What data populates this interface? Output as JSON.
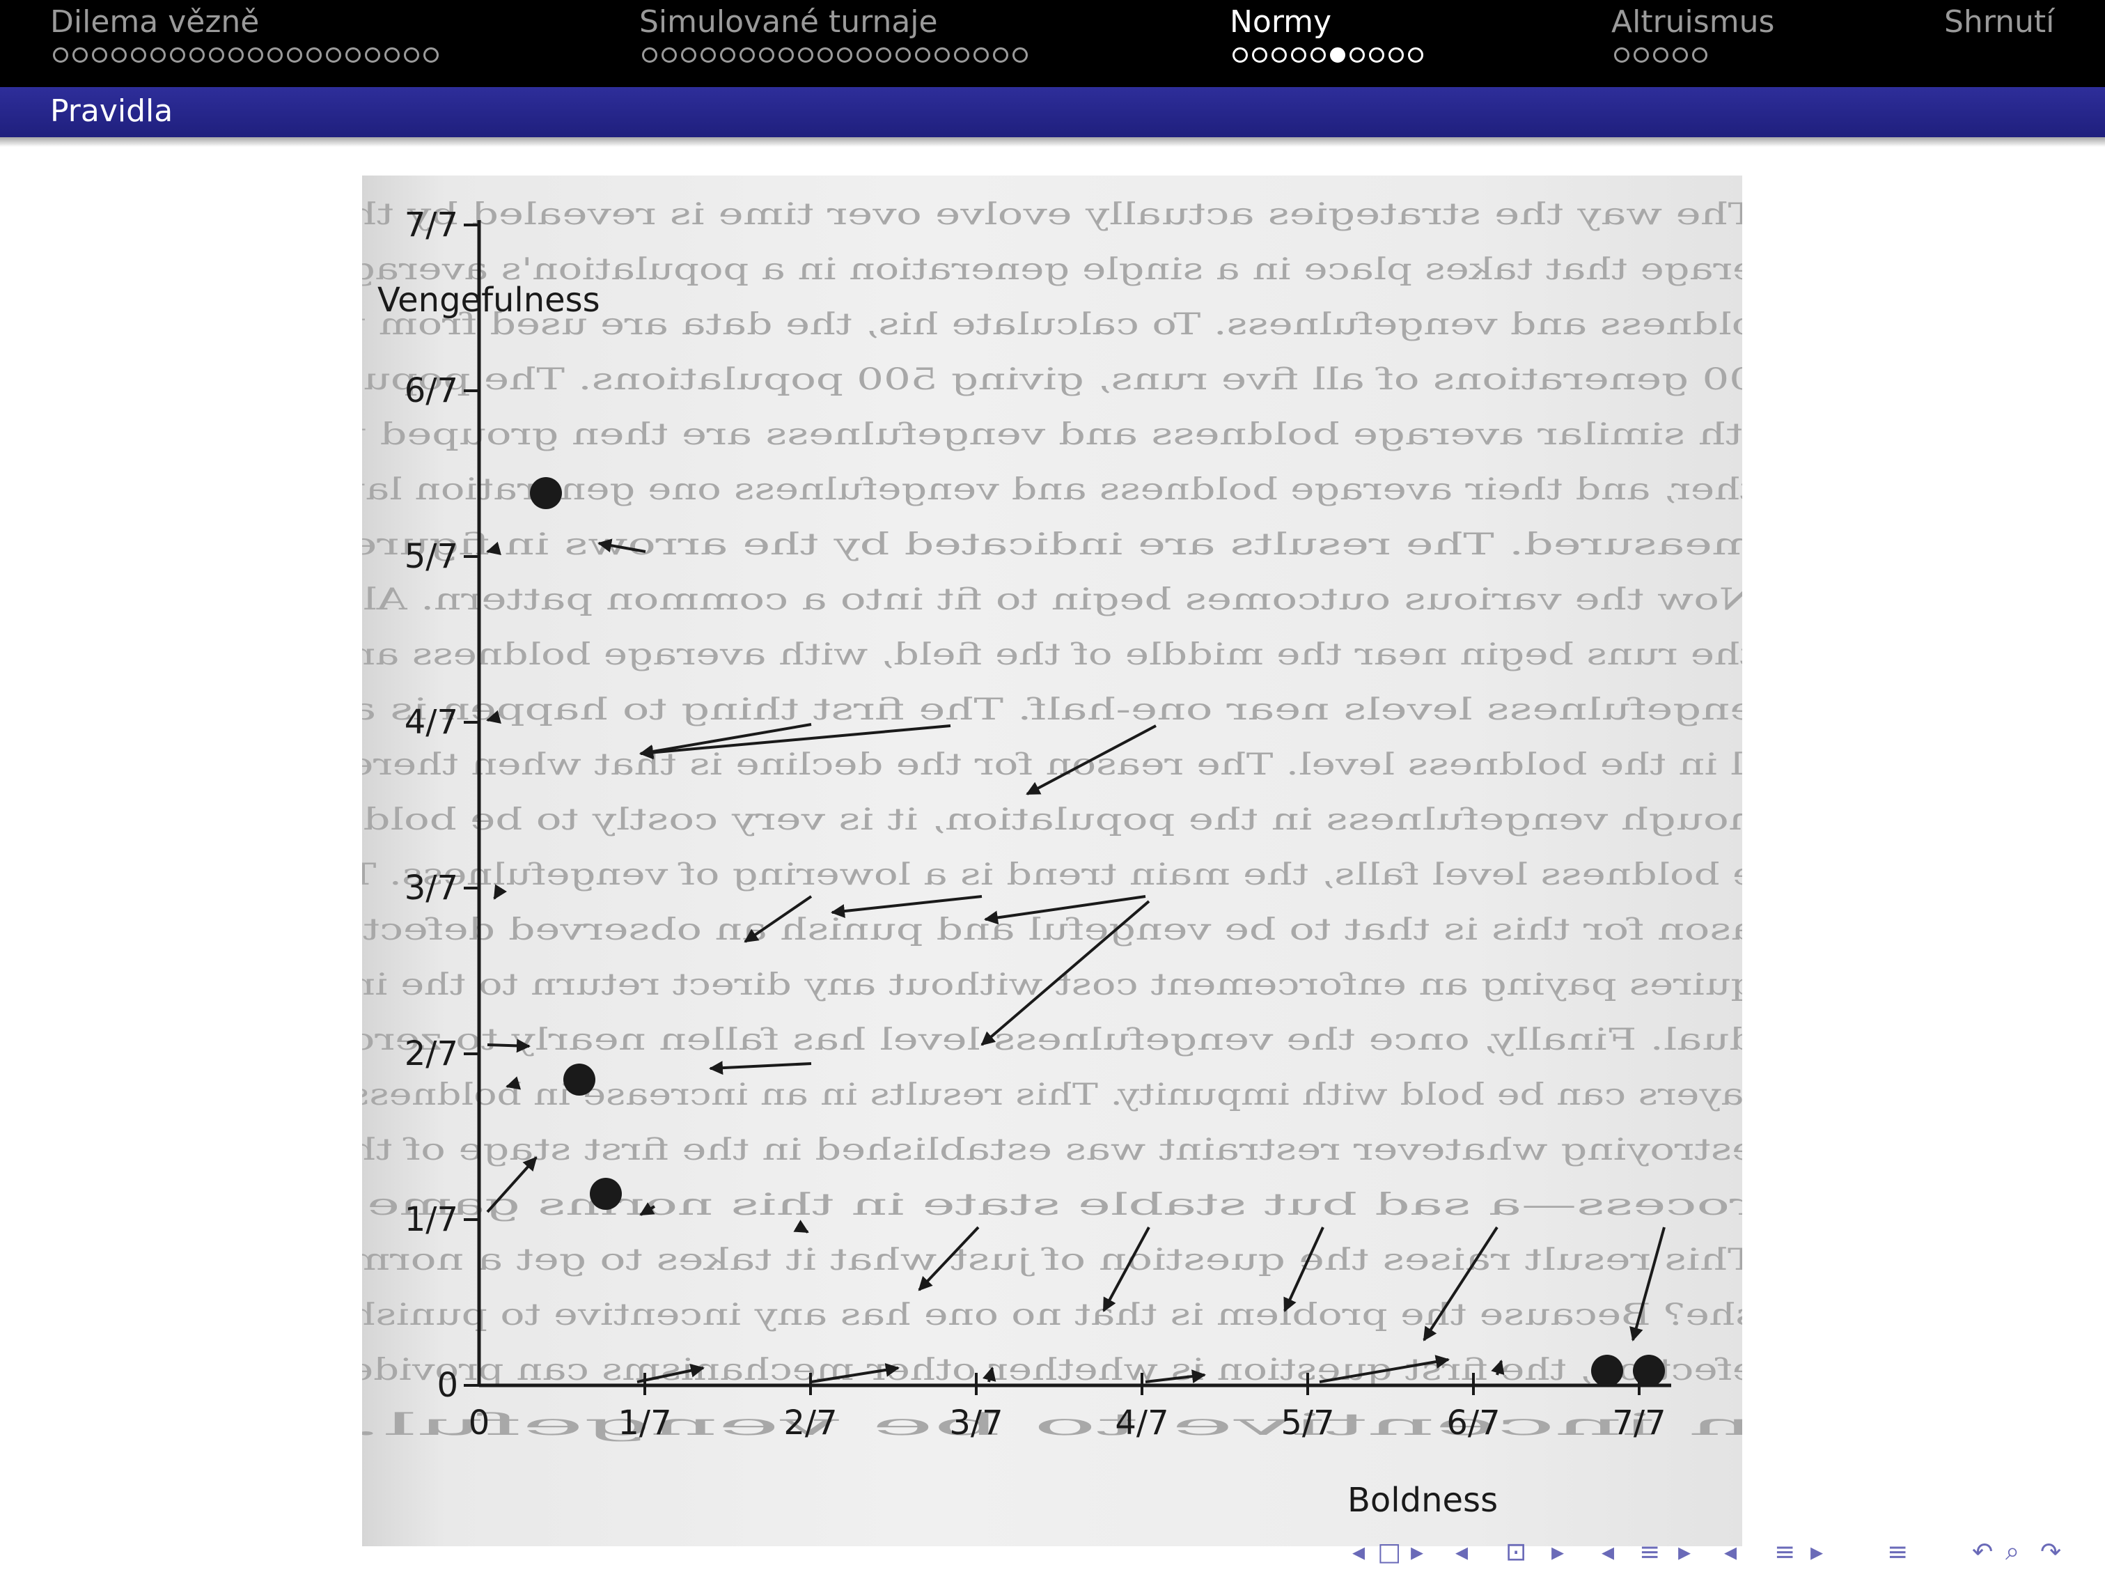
{
  "header": {
    "sections": [
      {
        "label": "Dilema vězně",
        "dots": 20,
        "current": -1
      },
      {
        "label": "Simulované turnaje",
        "dots": 20,
        "current": -1
      },
      {
        "label": "Normy",
        "dots": 10,
        "current": 5
      },
      {
        "label": "Altruismus",
        "dots": 5,
        "current": -1
      },
      {
        "label": "Shrnutí",
        "dots": 0,
        "current": -1
      }
    ],
    "active_section": "Normy",
    "subtitle": "Pravidla"
  },
  "figure": {
    "y_axis_title": "Vengefulness",
    "x_axis_title": "Boldness",
    "y_tick_labels": [
      "0",
      "1/7",
      "2/7",
      "3/7",
      "4/7",
      "5/7",
      "6/7",
      "7/7"
    ],
    "x_tick_labels": [
      "0",
      "1/7",
      "2/7",
      "3/7",
      "4/7",
      "5/7",
      "6/7",
      "7/7"
    ],
    "background_text_lines": [
      "The way the strategies actually evolve over time is revealed by th",
      "erage that takes place in a single generation in a population's averag",
      "oldness and vengefulness. To calculate his, the data are used from t",
      "00 generations of all five runs, giving 500 populations. The popul",
      "ith similar average boldness and vengefulness are then grouped t",
      "ther, and their average boldness and vengefulness one generation lat",
      "measured. The results are indicated by the arrows in figure",
      "Now the various outcomes begin to fit into a common pattern. All",
      "the runs begin near the middle of the field, with average boldness an",
      "engefulness levels near one-half. The first thing to happen is a",
      "ll in the boldness level. The reason for the decline is that when there",
      "nough vengefulness in the population, it is very costly to be bold.",
      "e boldness level falls, the main trend is a lowering of vengefulness. T",
      "ason for this is that to be vengeful and punish an observed defecti",
      "quires paying an enforcement cost without any direct return to the in",
      "dual. Finally, once the vengefulness level has fallen nearly to zero",
      "layers can be bold with impunity. This results in an increase in boldness",
      "estroying whatever restraint was established in the first stage of th",
      "rocess—a sad but stable state in this norms game.",
      "This result raises the question of just what it takes to get a norm",
      "she? Because the problem is that no one has any incentive to punish",
      "efection, the first question is whether other mechanisms can provide",
      "n incentive to be vengeful."
    ]
  }
}
